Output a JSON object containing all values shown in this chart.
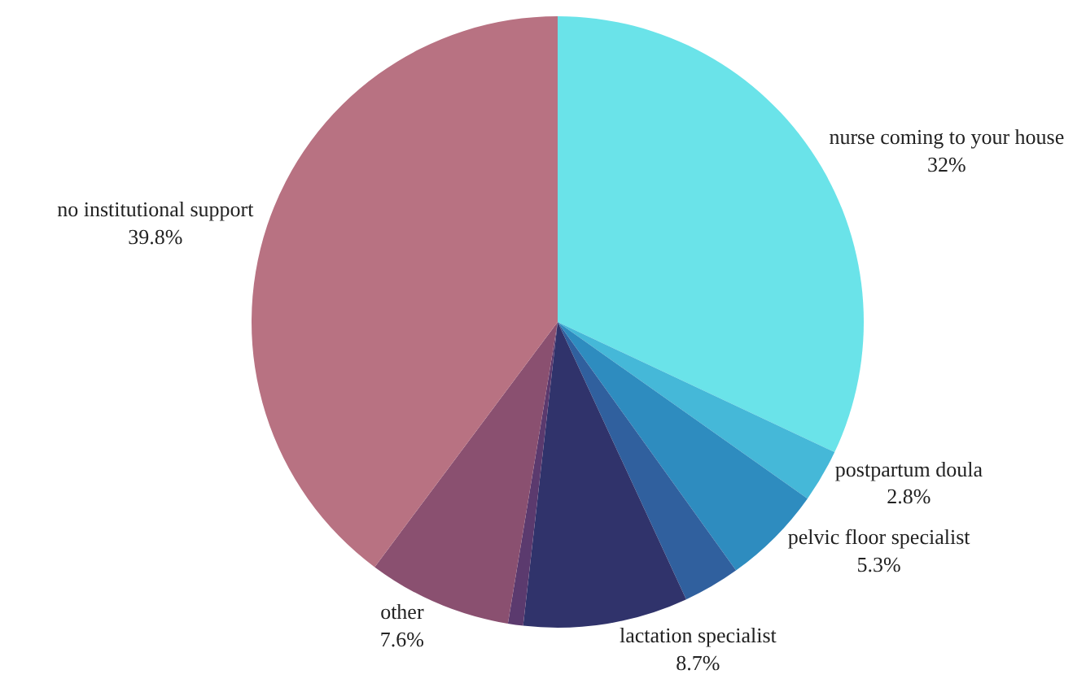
{
  "chart_data": {
    "type": "pie",
    "categories": [
      "nurse coming to your house",
      "postpartum doula",
      "pelvic floor specialist",
      null,
      "lactation specialist",
      null,
      "other",
      "no institutional support"
    ],
    "values": [
      32,
      2.8,
      5.3,
      3.0,
      8.7,
      0.8,
      7.6,
      39.8
    ],
    "value_labels": [
      "32%",
      "2.8%",
      "5.3%",
      null,
      "8.7%",
      null,
      "7.6%",
      "39.8%"
    ],
    "colors": [
      "#6ae3e9",
      "#45b8d8",
      "#2e8cbf",
      "#30609e",
      "#30336b",
      "#5b3a6e",
      "#8a5070",
      "#b87282"
    ],
    "legend": false
  }
}
